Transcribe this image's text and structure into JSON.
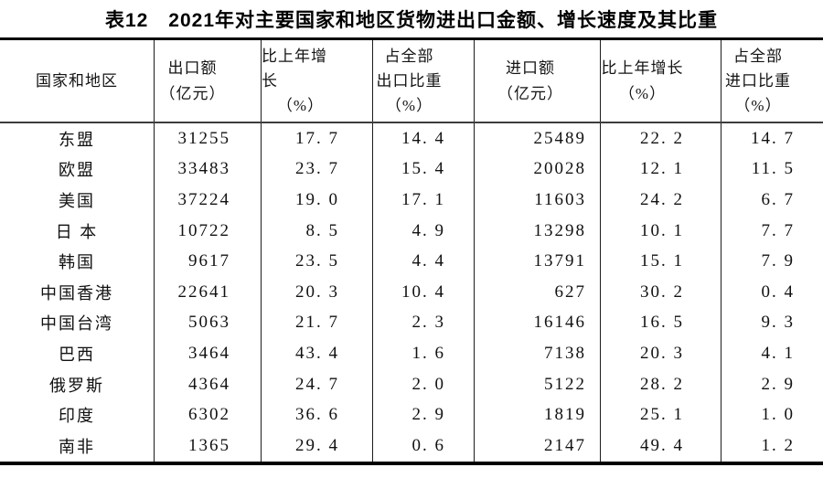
{
  "page": {
    "title": "表12　2021年对主要国家和地区货物进出口金额、增长速度及其比重"
  },
  "colors": {
    "background": "#ffffff",
    "text": "#111111",
    "border": "#000000"
  },
  "table": {
    "columns": [
      {
        "id": "region",
        "header_lines": [
          "国家和地区"
        ]
      },
      {
        "id": "export-value",
        "header_lines": [
          "出口额",
          "（亿元）"
        ]
      },
      {
        "id": "export-growth",
        "header_lines": [
          "比上年增长",
          "（%）"
        ]
      },
      {
        "id": "export-share",
        "header_lines": [
          "占全部",
          "出口比重",
          "（%）"
        ]
      },
      {
        "id": "import-value",
        "header_lines": [
          "进口额",
          "（亿元）"
        ]
      },
      {
        "id": "import-growth",
        "header_lines": [
          "比上年增长",
          "（%）"
        ]
      },
      {
        "id": "import-share",
        "header_lines": [
          "占全部",
          "进口比重",
          "（%）"
        ]
      }
    ],
    "rows": [
      [
        "东盟",
        "31255",
        "17. 7",
        "14. 4",
        "25489",
        "22. 2",
        "14. 7"
      ],
      [
        "欧盟",
        "33483",
        "23. 7",
        "15. 4",
        "20028",
        "12. 1",
        "11. 5"
      ],
      [
        "美国",
        "37224",
        "19. 0",
        "17. 1",
        "11603",
        "24. 2",
        "6. 7"
      ],
      [
        "日 本",
        "10722",
        "8. 5",
        "4. 9",
        "13298",
        "10. 1",
        "7. 7"
      ],
      [
        "韩国",
        "9617",
        "23. 5",
        "4. 4",
        "13791",
        "15. 1",
        "7. 9"
      ],
      [
        "中国香港",
        "22641",
        "20. 3",
        "10. 4",
        "627",
        "30. 2",
        "0. 4"
      ],
      [
        "中国台湾",
        "5063",
        "21. 7",
        "2. 3",
        "16146",
        "16. 5",
        "9. 3"
      ],
      [
        "巴西",
        "3464",
        "43. 4",
        "1. 6",
        "7138",
        "20. 3",
        "4. 1"
      ],
      [
        "俄罗斯",
        "4364",
        "24. 7",
        "2. 0",
        "5122",
        "28. 2",
        "2. 9"
      ],
      [
        "印度",
        "6302",
        "36. 6",
        "2. 9",
        "1819",
        "25. 1",
        "1. 0"
      ],
      [
        "南非",
        "1365",
        "29. 4",
        "0. 6",
        "2147",
        "49. 4",
        "1. 2"
      ]
    ]
  }
}
